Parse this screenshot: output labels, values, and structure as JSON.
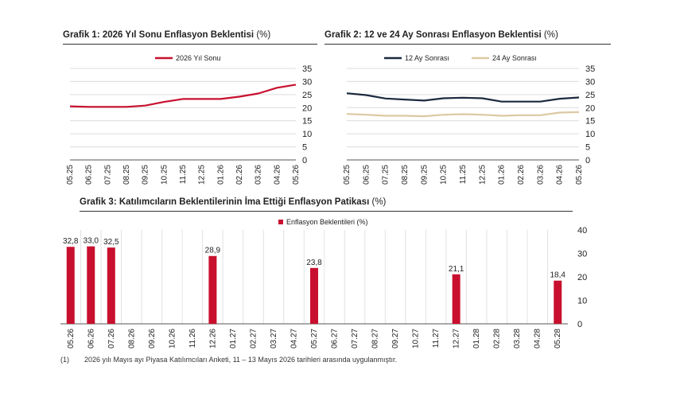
{
  "chart_data": [
    {
      "type": "line",
      "title": "Grafik 1: 2026 Yıl Sonu Enflasyon Beklentisi",
      "title_unit": "(%)",
      "x": [
        "05.25",
        "06.25",
        "07.25",
        "08.25",
        "09.25",
        "10.25",
        "11.25",
        "12.25",
        "01.26",
        "02.26",
        "03.26",
        "04.26",
        "05.26"
      ],
      "series": [
        {
          "name": "2026 Yıl Sonu",
          "color": "#c8102e",
          "values": [
            20.5,
            20.3,
            20.3,
            20.3,
            20.8,
            22.2,
            23.3,
            23.3,
            23.3,
            24.2,
            25.4,
            27.6,
            28.8
          ]
        }
      ],
      "y_ticks": [
        0,
        5,
        10,
        15,
        20,
        25,
        30,
        35
      ],
      "ylim": [
        0,
        35
      ],
      "grid": "horizontal",
      "legend_position": "top"
    },
    {
      "type": "line",
      "title": "Grafik 2: 12 ve 24 Ay Sonrası Enflasyon Beklentisi",
      "title_unit": "(%)",
      "x": [
        "05.25",
        "06.25",
        "07.25",
        "08.25",
        "09.25",
        "10.25",
        "11.25",
        "12.25",
        "01.26",
        "02.26",
        "03.26",
        "04.26",
        "05.26"
      ],
      "series": [
        {
          "name": "12 Ay Sonrası",
          "color": "#1b2a3f",
          "values": [
            25.5,
            24.8,
            23.5,
            23.1,
            22.7,
            23.6,
            23.8,
            23.6,
            22.3,
            22.3,
            22.3,
            23.4,
            23.9
          ]
        },
        {
          "name": "24 Ay Sonrası",
          "color": "#dcc9a3",
          "values": [
            17.6,
            17.3,
            16.9,
            16.9,
            16.7,
            17.3,
            17.5,
            17.3,
            16.9,
            17.1,
            17.1,
            18.1,
            18.3
          ]
        }
      ],
      "y_ticks": [
        0,
        5,
        10,
        15,
        20,
        25,
        30,
        35
      ],
      "ylim": [
        0,
        35
      ],
      "grid": "horizontal",
      "legend_position": "top"
    },
    {
      "type": "bar",
      "title": "Grafik 3: Katılımcıların Beklentilerinin İma Ettiği Enflasyon Patikası",
      "title_unit": "(%)",
      "categories": [
        "05.26",
        "06.26",
        "07.26",
        "08.26",
        "09.26",
        "10.26",
        "11.26",
        "12.26",
        "01.27",
        "02.27",
        "03.27",
        "04.27",
        "05.27",
        "06.27",
        "07.27",
        "08.27",
        "09.27",
        "10.27",
        "11.27",
        "12.27",
        "01.28",
        "02.28",
        "03.28",
        "04.28",
        "05.28"
      ],
      "series": [
        {
          "name": "Enflasyon Beklentileri (%)",
          "color": "#c8102e",
          "values": [
            32.8,
            33.0,
            32.5,
            null,
            null,
            null,
            null,
            28.9,
            null,
            null,
            null,
            null,
            23.8,
            null,
            null,
            null,
            null,
            null,
            null,
            21.1,
            null,
            null,
            null,
            null,
            18.4
          ]
        }
      ],
      "data_labels": [
        "32,8",
        "33,0",
        "32,5",
        null,
        null,
        null,
        null,
        "28,9",
        null,
        null,
        null,
        null,
        "23,8",
        null,
        null,
        null,
        null,
        null,
        null,
        "21,1",
        null,
        null,
        null,
        null,
        "18,4"
      ],
      "y_ticks": [
        0,
        10,
        20,
        30,
        40
      ],
      "ylim": [
        0,
        40
      ],
      "grid": "vertical",
      "legend_position": "top"
    }
  ],
  "footnote": {
    "marker": "(1)",
    "text": "2026 yılı Mayıs ayı Piyasa Katılımcıları Anketi, 11 – 13 Mayıs 2026 tarihleri arasında uygulanmıştır."
  }
}
